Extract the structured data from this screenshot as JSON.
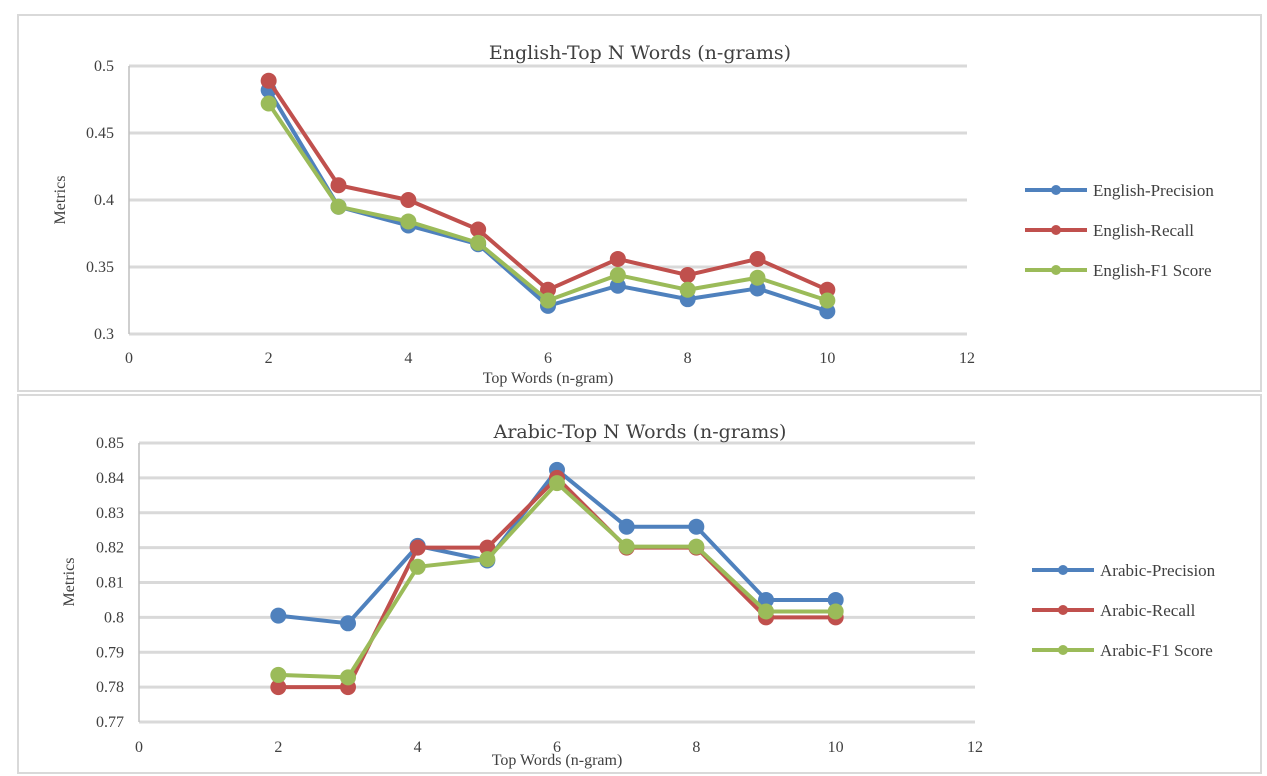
{
  "chart_data": [
    {
      "type": "line",
      "title": "English-Top N Words (n-grams)",
      "xlabel": "Top Words (n-gram)",
      "ylabel": "Metrics",
      "xlim": [
        0,
        12
      ],
      "ylim": [
        0.3,
        0.5
      ],
      "x_ticks": [
        "0",
        "2",
        "4",
        "6",
        "8",
        "10",
        "12"
      ],
      "y_ticks": [
        "0.3",
        "0.35",
        "0.4",
        "0.45",
        "0.5"
      ],
      "grid": true,
      "legend_position": "right",
      "x": [
        2,
        3,
        4,
        5,
        6,
        7,
        8,
        9,
        10
      ],
      "series": [
        {
          "name": "English-Precision",
          "color": "#4f81bd",
          "values": [
            0.482,
            0.395,
            0.381,
            0.367,
            0.321,
            0.336,
            0.326,
            0.334,
            0.317
          ]
        },
        {
          "name": "English-Recall",
          "color": "#c0504d",
          "values": [
            0.489,
            0.411,
            0.4,
            0.378,
            0.333,
            0.356,
            0.344,
            0.356,
            0.333
          ]
        },
        {
          "name": "English-F1 Score",
          "color": "#9bbb59",
          "values": [
            0.472,
            0.395,
            0.384,
            0.368,
            0.325,
            0.344,
            0.333,
            0.342,
            0.325
          ]
        }
      ]
    },
    {
      "type": "line",
      "title": "Arabic-Top N Words (n-grams)",
      "xlabel": "Top  Words (n-gram)",
      "ylabel": "Metrics",
      "xlim": [
        0,
        12
      ],
      "ylim": [
        0.77,
        0.85
      ],
      "x_ticks": [
        "0",
        "2",
        "4",
        "6",
        "8",
        "10",
        "12"
      ],
      "y_ticks": [
        "0.77",
        "0.78",
        "0.79",
        "0.8",
        "0.81",
        "0.82",
        "0.83",
        "0.84",
        "0.85"
      ],
      "grid": true,
      "legend_position": "right",
      "x": [
        2,
        3,
        4,
        5,
        6,
        7,
        8,
        9,
        10
      ],
      "series": [
        {
          "name": "Arabic-Precision",
          "color": "#4f81bd",
          "values": [
            0.8005,
            0.7983,
            0.8205,
            0.8163,
            0.8423,
            0.826,
            0.826,
            0.805,
            0.805
          ]
        },
        {
          "name": "Arabic-Recall",
          "color": "#c0504d",
          "values": [
            0.78,
            0.78,
            0.82,
            0.82,
            0.84,
            0.82,
            0.82,
            0.8,
            0.8
          ]
        },
        {
          "name": "Arabic-F1 Score",
          "color": "#9bbb59",
          "values": [
            0.7835,
            0.7828,
            0.8145,
            0.8167,
            0.8385,
            0.8203,
            0.8203,
            0.8017,
            0.8017
          ]
        }
      ]
    }
  ]
}
